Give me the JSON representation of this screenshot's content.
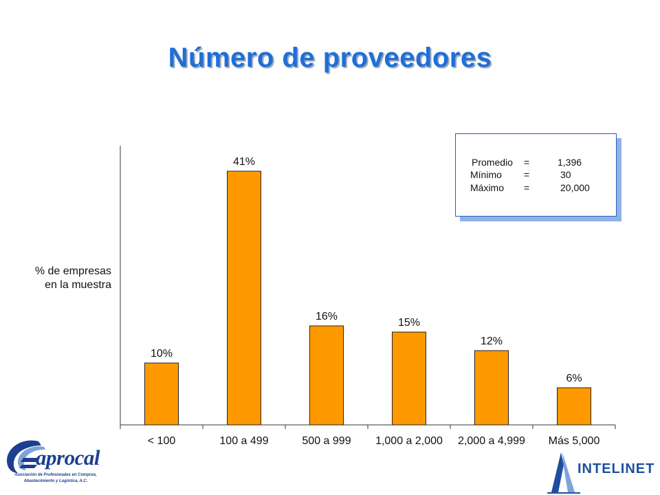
{
  "slide": {
    "title": "Número de proveedores"
  },
  "chart_data": {
    "type": "bar",
    "title": "Número de proveedores",
    "ylabel_lines": [
      "% de empresas",
      "en la muestra"
    ],
    "xlabel": "",
    "categories": [
      "< 100",
      "100 a 499",
      "500 a 999",
      "1,000 a 2,000",
      "2,000 a 4,999",
      "Más 5,000"
    ],
    "values": [
      10,
      41,
      16,
      15,
      12,
      6
    ],
    "value_labels": [
      "10%",
      "41%",
      "16%",
      "15%",
      "12%",
      "6%"
    ],
    "ylim": [
      0,
      45
    ],
    "grid": false,
    "bar_color": "#ff9900"
  },
  "stats_box": {
    "rows": [
      {
        "label": "Promedio",
        "eq": "=",
        "value": "1,396"
      },
      {
        "label": "Mínimo",
        "eq": "=",
        "value": "30"
      },
      {
        "label": "Máximo",
        "eq": "=",
        "value": "20,000"
      }
    ]
  },
  "logos": {
    "left": {
      "name": "aprocal",
      "tagline_1": "Asociación de Profesionales en Compras,",
      "tagline_2": "Abastecimiento y Logística, A.C."
    },
    "right": {
      "name": "INTELINET"
    }
  },
  "colors": {
    "title": "#1f6fd6",
    "bar": "#ff9900",
    "logo_blue": "#1d3f8f"
  }
}
